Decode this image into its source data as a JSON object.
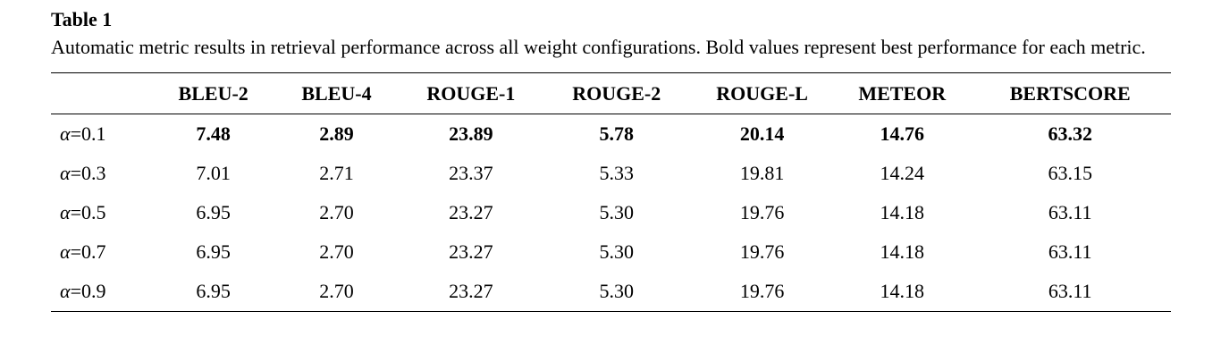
{
  "caption": {
    "title": "Table 1",
    "text": "Automatic metric results in retrieval performance across all weight configurations. Bold values represent best performance for each metric."
  },
  "table": {
    "headers": [
      "",
      "BLEU-2",
      "BLEU-4",
      "ROUGE-1",
      "ROUGE-2",
      "ROUGE-L",
      "METEOR",
      "BERTSCORE"
    ],
    "rows": [
      {
        "label": "α=0.1",
        "values": [
          "7.48",
          "2.89",
          "23.89",
          "5.78",
          "20.14",
          "14.76",
          "63.32"
        ],
        "best": true
      },
      {
        "label": "α=0.3",
        "values": [
          "7.01",
          "2.71",
          "23.37",
          "5.33",
          "19.81",
          "14.24",
          "63.15"
        ],
        "best": false
      },
      {
        "label": "α=0.5",
        "values": [
          "6.95",
          "2.70",
          "23.27",
          "5.30",
          "19.76",
          "14.18",
          "63.11"
        ],
        "best": false
      },
      {
        "label": "α=0.7",
        "values": [
          "6.95",
          "2.70",
          "23.27",
          "5.30",
          "19.76",
          "14.18",
          "63.11"
        ],
        "best": false
      },
      {
        "label": "α=0.9",
        "values": [
          "6.95",
          "2.70",
          "23.27",
          "5.30",
          "19.76",
          "14.18",
          "63.11"
        ],
        "best": false
      }
    ]
  }
}
